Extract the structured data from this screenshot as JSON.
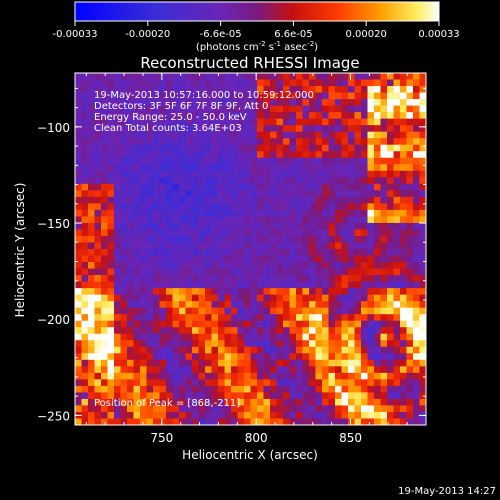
{
  "colorbar": {
    "ticks": [
      "-0.00033",
      "-0.00020",
      "-6.6e-05",
      "6.6e-05",
      "0.00020",
      "0.00033"
    ],
    "units_prefix": "(photons cm",
    "units_exp1": "-2",
    "units_mid": " s",
    "units_exp2": "-1",
    "units_end": " asec",
    "units_exp3": "-2",
    "units_close": ")"
  },
  "chart_data": {
    "type": "heatmap",
    "title": "Reconstructed RHESSI Image",
    "xlabel": "Heliocentric X (arcsec)",
    "ylabel": "Heliocentric Y (arcsec)",
    "xlim": [
      704,
      890
    ],
    "ylim": [
      -255,
      -72
    ],
    "x_ticks": [
      750,
      800,
      850
    ],
    "y_ticks": [
      -100,
      -150,
      -200,
      -250
    ],
    "clim": [
      -0.00033,
      0.00033
    ],
    "annotations": [
      "19-May-2013 10:57:16.000 to 10:59:12.000",
      "Detectors: 3F 5F 6F 7F 8F 9F, Att 0",
      "Energy Range: 25.0 - 50.0 keV",
      "Clean     Total counts: 3.64E+03"
    ],
    "peak_label": "Position of Peak = [868,-211]",
    "peak_position": [
      868,
      -211
    ]
  },
  "footer": {
    "timestamp": "19-May-2013 14:27"
  }
}
